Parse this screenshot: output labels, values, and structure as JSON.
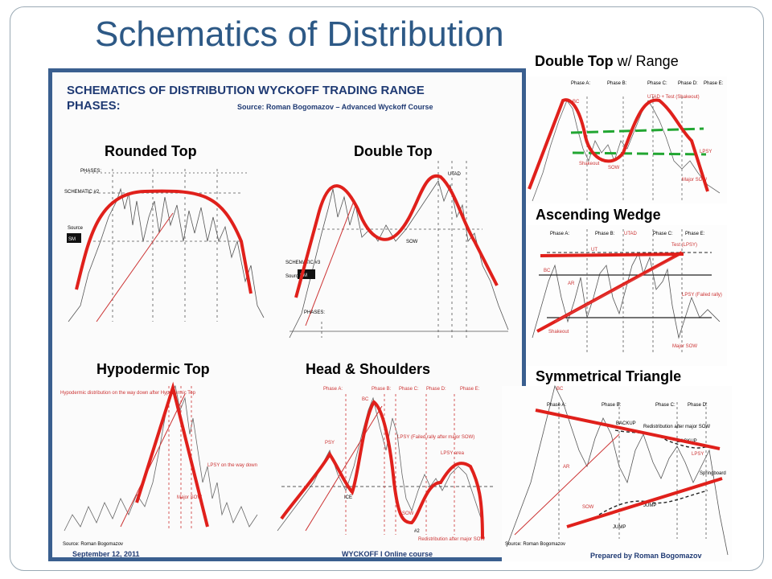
{
  "title": "Schematics of Distribution",
  "sheet": {
    "header_line1": "SCHEMATICS OF DISTRIBUTION WYCKOFF TRADING RANGE",
    "header_line2": "PHASES:",
    "source": "Source: Roman Bogomazov – Advanced Wyckoff Course",
    "footer_date": "September 12, 2011",
    "footer_course": "WYCKOFF I Online course",
    "footer_author": "Prepared by Roman Bogomazov"
  },
  "labels": {
    "rounded_top": "Rounded Top",
    "double_top": "Double Top",
    "double_top_range_bold": "Double Top",
    "double_top_range_light": " w/ Range",
    "ascending_wedge": "Ascending Wedge",
    "hypodermic_top": "Hypodermic Top",
    "head_shoulders": "Head & Shoulders",
    "symmetrical_triangle": "Symmetrical Triangle"
  },
  "chart_texts": {
    "schematic2": "SCHEMATIC #2",
    "schematic3": "SCHEMATIC #3",
    "phases": "PHASES:",
    "sm": "SM",
    "source": "Source",
    "utad": "UTAD",
    "lpsy": "LPSY",
    "sow": "SOW",
    "ut": "UT",
    "bc": "BC",
    "ar": "AR",
    "st": "ST",
    "ice": "ICE",
    "psy": "PSY",
    "shakeout": "Shakeout",
    "major_sow": "Major SOW",
    "utad_test": "UTAD + Test (Shakeout)",
    "test_lpsy": "Test (LPSY)",
    "lpsy_failed": "LPSY (Failed rally)",
    "lpsy_failed_hs": "LPSY (Failed rally after major SOW)",
    "lpsy_area": "LPSY area",
    "backup": "BACKUP",
    "jump": "JUMP",
    "springboard": "Springboard",
    "redistribution": "Redistribution after major SOW",
    "hypodermic_note": "Hypodermic distribution on the way down after Hypodermic Top",
    "lpsy_way_down": "LPSY on the way down",
    "source_roman": "Source: Roman Bogomazov",
    "phase_a": "Phase A:",
    "phase_b": "Phase B:",
    "phase_c": "Phase C:",
    "phase_d": "Phase D:",
    "phase_e": "Phase E:",
    "num2": "#2"
  }
}
